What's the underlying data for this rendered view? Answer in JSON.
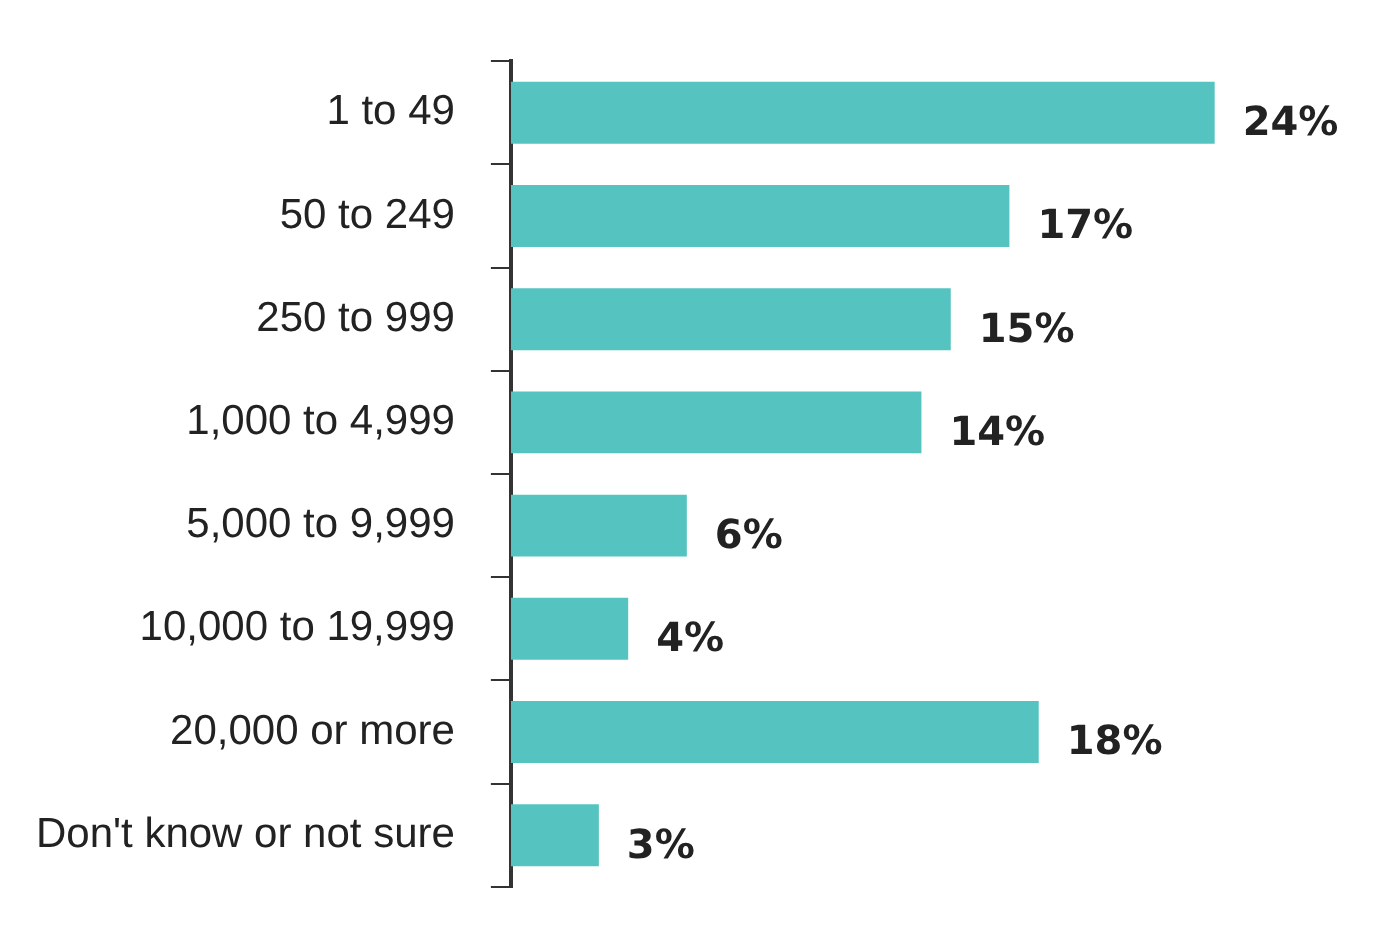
{
  "chart_data": {
    "type": "bar",
    "orientation": "horizontal",
    "categories": [
      "1 to 49",
      "50 to 249",
      "250 to 999",
      "1,000 to 4,999",
      "5,000 to 9,999",
      "10,000 to 19,999",
      "20,000 or more",
      "Don't know or not sure"
    ],
    "values": [
      24,
      17,
      15,
      14,
      6,
      4,
      18,
      3
    ],
    "value_labels": [
      "24%",
      "17%",
      "15%",
      "14%",
      "6%",
      "4%",
      "18%",
      "3%"
    ],
    "color": "#55c4c0",
    "legend": false,
    "tick_labels": "y"
  }
}
